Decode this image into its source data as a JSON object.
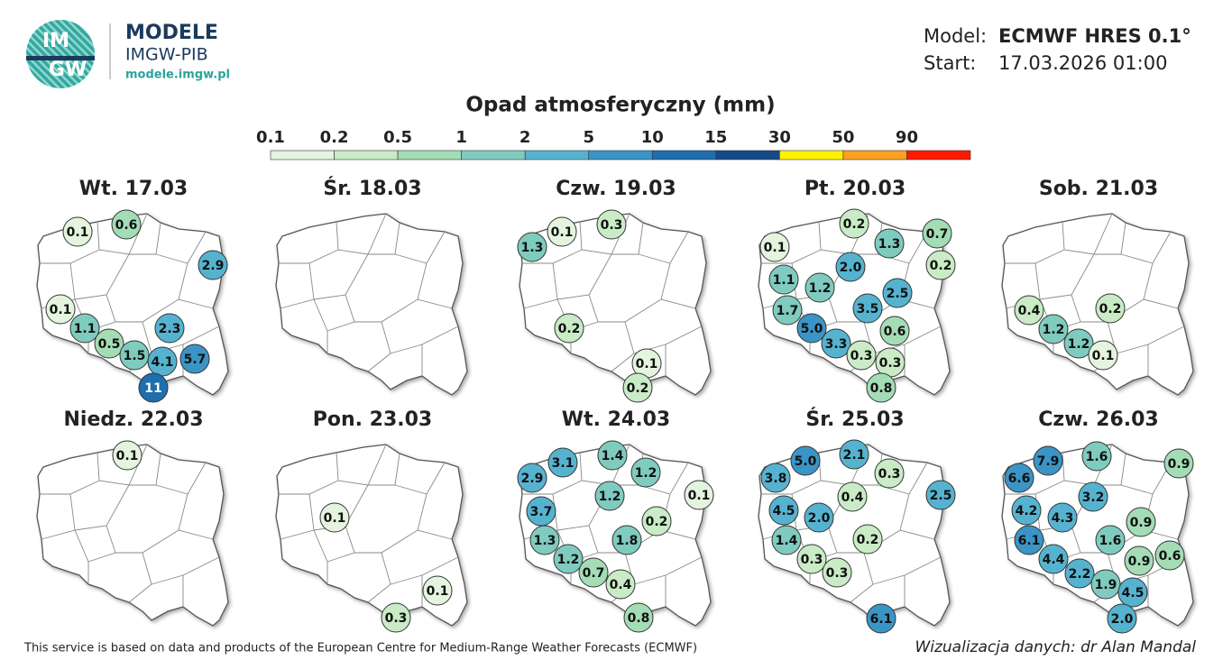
{
  "header": {
    "logo_top": "IM",
    "logo_bottom": "GW",
    "brand": "MODELE",
    "org": "IMGW-PIB",
    "url": "modele.imgw.pl"
  },
  "model": {
    "model_label": "Model:",
    "model_value": "ECMWF HRES 0.1°",
    "start_label": "Start:",
    "start_value": "17.03.2026 01:00"
  },
  "legend": {
    "title": "Opad atmosferyczny (mm)",
    "levels": [
      0.1,
      0.2,
      0.5,
      1,
      2,
      5,
      10,
      15,
      30,
      50,
      90
    ],
    "colors": [
      "#e4f4de",
      "#c9ebc6",
      "#a4dcb5",
      "#7fcbbf",
      "#56b3d0",
      "#3a95c6",
      "#1f6ead",
      "#154a88",
      "#fff200",
      "#ffa022",
      "#ff1a00"
    ]
  },
  "maps": [
    {
      "title": "Wt. 17.03",
      "points": [
        "0.1",
        "0.6",
        "2.9",
        "0.1",
        "1.1",
        "2.3",
        "0.5",
        "1.5",
        "4.1",
        "5.7",
        "11"
      ]
    },
    {
      "title": "Śr. 18.03",
      "points": []
    },
    {
      "title": "Czw. 19.03",
      "points": [
        "0.1",
        "0.3",
        "1.3",
        "0.2",
        "0.1",
        "0.2"
      ]
    },
    {
      "title": "Pt. 20.03",
      "points": [
        "0.2",
        "0.7",
        "1.3",
        "0.1",
        "0.2",
        "2.0",
        "1.1",
        "1.2",
        "2.5",
        "1.7",
        "3.5",
        "5.0",
        "0.6",
        "3.3",
        "0.3",
        "0.3",
        "0.8"
      ]
    },
    {
      "title": "Sob. 21.03",
      "points": [
        "0.4",
        "0.2",
        "1.2",
        "1.2",
        "0.1"
      ]
    },
    {
      "title": "Niedz. 22.03",
      "points": [
        "0.1"
      ]
    },
    {
      "title": "Pon. 23.03",
      "points": [
        "0.1",
        "0.1",
        "0.3"
      ]
    },
    {
      "title": "Wt. 24.03",
      "points": [
        "1.4",
        "3.1",
        "2.9",
        "1.2",
        "1.2",
        "0.1",
        "3.7",
        "0.2",
        "1.3",
        "1.8",
        "1.2",
        "0.7",
        "0.4",
        "0.8"
      ]
    },
    {
      "title": "Śr. 25.03",
      "points": [
        "2.1",
        "5.0",
        "3.8",
        "0.3",
        "0.4",
        "2.5",
        "4.5",
        "2.0",
        "1.4",
        "0.2",
        "0.3",
        "0.3",
        "6.1"
      ]
    },
    {
      "title": "Czw. 26.03",
      "points": [
        "7.9",
        "1.6",
        "0.9",
        "6.6",
        "3.2",
        "4.2",
        "4.3",
        "0.9",
        "6.1",
        "1.6",
        "0.9",
        "0.6",
        "4.4",
        "2.2",
        "1.9",
        "4.5",
        "2.0"
      ]
    }
  ],
  "footer": {
    "source": "This service is based on data and products of the European Centre for Medium-Range Weather Forecasts (ECMWF)",
    "credit": "Wizualizacja danych: dr Alan Mandal"
  }
}
